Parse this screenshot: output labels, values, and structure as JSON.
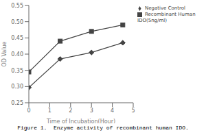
{
  "chart_data": {
    "type": "line",
    "title": "Figure 1.  Enzyme activity of recombinant human IDO.",
    "xlabel": "Time of Incubation(Hour)",
    "ylabel": "OD Value",
    "x": [
      0,
      1.5,
      3,
      4.5
    ],
    "series": [
      {
        "name": "Recombinant Human IDO(5ng/ml)",
        "color": "#444444",
        "marker": "square",
        "values": [
          0.345,
          0.44,
          0.47,
          0.49
        ]
      },
      {
        "name": "Negative Control",
        "color": "#444444",
        "marker": "diamond",
        "values": [
          0.297,
          0.385,
          0.405,
          0.435
        ]
      }
    ],
    "xlim": [
      0,
      5
    ],
    "ylim": [
      0.25,
      0.55
    ],
    "xticks": [
      0,
      1,
      2,
      3,
      4,
      5
    ],
    "yticks": [
      0.25,
      {
        "value": 0.3,
        "label": "0.30"
      },
      0.35,
      {
        "value": 0.4,
        "label": "0.40"
      },
      0.45,
      {
        "value": 0.5,
        "label": "0.50"
      },
      0.55
    ],
    "grid": false,
    "legend": "right"
  }
}
